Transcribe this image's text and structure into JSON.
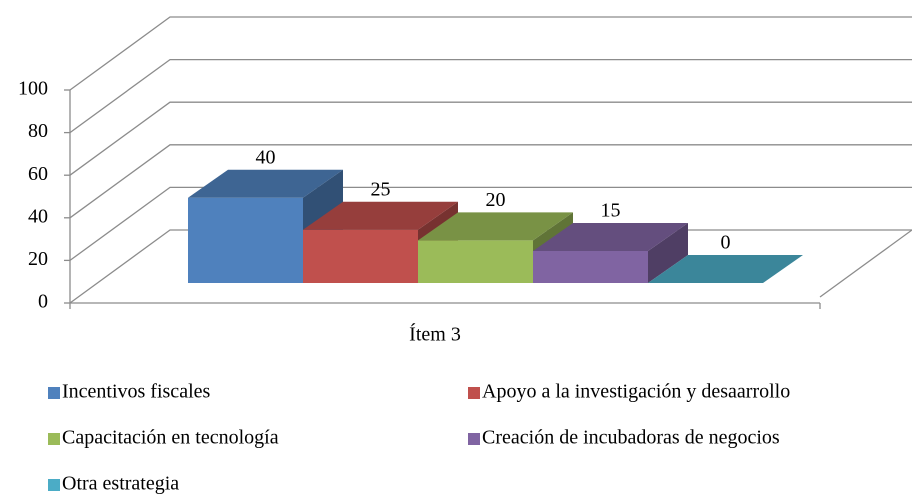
{
  "chart_data": {
    "type": "bar3d",
    "categories": [
      "Ítem 3"
    ],
    "series": [
      {
        "name": "Incentivos fiscales",
        "color": "#4f81bd",
        "values": [
          40
        ]
      },
      {
        "name": "Apoyo a la investigación y desaarrollo",
        "color": "#c0504d",
        "values": [
          25
        ]
      },
      {
        "name": "Capacitación en tecnología",
        "color": "#9bbb59",
        "values": [
          20
        ]
      },
      {
        "name": "Creación de incubadoras de negocios",
        "color": "#8064a2",
        "values": [
          15
        ]
      },
      {
        "name": "Otra estrategia",
        "color": "#4bacc6",
        "values": [
          0
        ]
      }
    ],
    "ylim": [
      0,
      100
    ],
    "yticks": [
      0,
      20,
      40,
      60,
      80,
      100
    ],
    "grid": true
  }
}
